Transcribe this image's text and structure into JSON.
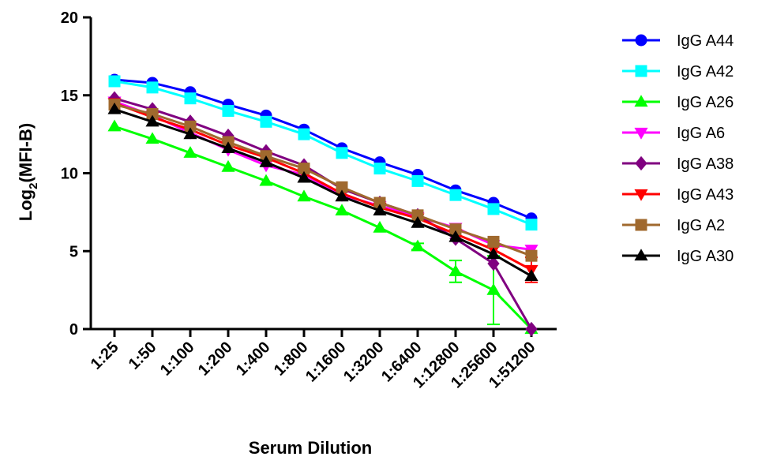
{
  "chart_data": {
    "type": "line",
    "xlabel": "Serum Dilution",
    "ylabel_main": "Log",
    "ylabel_sub": "2",
    "ylabel_rest": "(MFI-B)",
    "categories": [
      "1:25",
      "1:50",
      "1:100",
      "1:200",
      "1:400",
      "1:800",
      "1:1600",
      "1:3200",
      "1:6400",
      "1:12800",
      "1:25600",
      "1:51200"
    ],
    "yticks": [
      "0",
      "5",
      "10",
      "15",
      "20"
    ],
    "ylim": [
      0,
      20
    ],
    "grid": false,
    "legend_position": "right",
    "series": [
      {
        "name": "IgG A44",
        "color": "#0000ff",
        "marker": "circle",
        "values": [
          16.0,
          15.8,
          15.2,
          14.4,
          13.7,
          12.8,
          11.6,
          10.7,
          9.9,
          8.9,
          8.1,
          7.1
        ]
      },
      {
        "name": "IgG A42",
        "color": "#00ffff",
        "marker": "square",
        "values": [
          15.9,
          15.5,
          14.8,
          14.0,
          13.3,
          12.5,
          11.3,
          10.3,
          9.5,
          8.6,
          7.7,
          6.7
        ]
      },
      {
        "name": "IgG A26",
        "color": "#00ff00",
        "marker": "triangle-up",
        "values": [
          13.0,
          12.2,
          11.3,
          10.4,
          9.5,
          8.5,
          7.6,
          6.5,
          5.3,
          3.7,
          2.5,
          0.0
        ],
        "errors": [
          0,
          0,
          0,
          0,
          0,
          0,
          0,
          0,
          0.2,
          0.7,
          2.2,
          0
        ]
      },
      {
        "name": "IgG A6",
        "color": "#ff00ff",
        "marker": "triangle-down",
        "values": [
          14.6,
          13.7,
          12.6,
          11.5,
          10.5,
          9.9,
          8.6,
          7.9,
          7.2,
          6.5,
          5.4,
          5.1
        ]
      },
      {
        "name": "IgG A38",
        "color": "#800080",
        "marker": "diamond",
        "values": [
          14.8,
          14.1,
          13.3,
          12.4,
          11.4,
          10.5,
          9.0,
          8.1,
          7.3,
          5.8,
          4.2,
          0.0
        ]
      },
      {
        "name": "IgG A43",
        "color": "#ff0000",
        "marker": "triangle-down",
        "values": [
          14.5,
          13.6,
          12.8,
          11.8,
          11.0,
          10.0,
          8.7,
          7.8,
          7.1,
          6.1,
          5.1,
          3.8
        ],
        "errors": [
          0,
          0,
          0,
          0,
          0,
          0,
          0,
          0,
          0,
          0,
          0,
          0.8
        ]
      },
      {
        "name": "IgG A2",
        "color": "#a0692e",
        "marker": "square",
        "values": [
          14.4,
          13.8,
          13.0,
          12.0,
          11.1,
          10.3,
          9.1,
          8.1,
          7.3,
          6.4,
          5.6,
          4.7
        ]
      },
      {
        "name": "IgG A30",
        "color": "#000000",
        "marker": "triangle-up",
        "values": [
          14.1,
          13.3,
          12.5,
          11.6,
          10.7,
          9.7,
          8.5,
          7.6,
          6.8,
          5.9,
          4.8,
          3.4
        ]
      }
    ]
  }
}
